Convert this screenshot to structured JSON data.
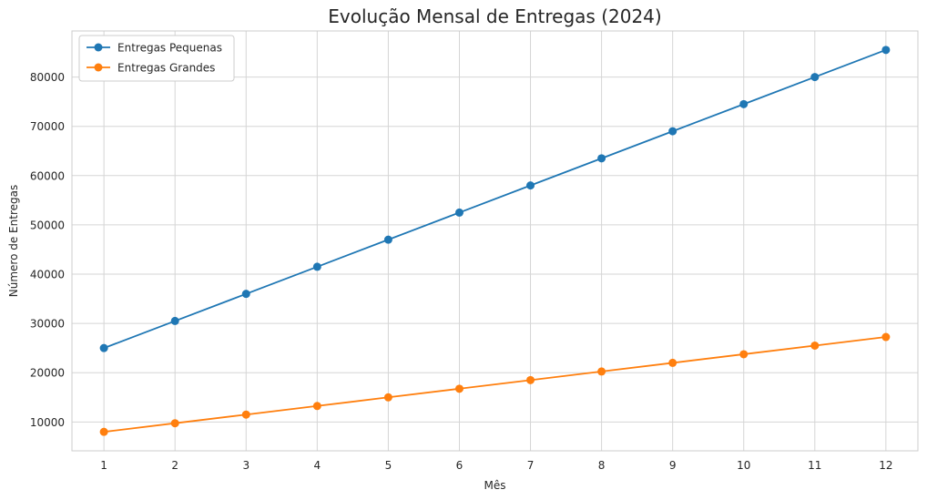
{
  "chart_data": {
    "type": "line",
    "title": "Evolução Mensal de Entregas (2024)",
    "xlabel": "Mês",
    "ylabel": "Número de Entregas",
    "x": [
      1,
      2,
      3,
      4,
      5,
      6,
      7,
      8,
      9,
      10,
      11,
      12
    ],
    "xlim": [
      0.55,
      12.45
    ],
    "ylim": [
      4150,
      89350
    ],
    "yticks": [
      10000,
      20000,
      30000,
      40000,
      50000,
      60000,
      70000,
      80000
    ],
    "grid": true,
    "legend_position": "top-left",
    "series": [
      {
        "name": "Entregas Pequenas",
        "color": "#1f77b4",
        "marker": "circle",
        "values": [
          25000,
          30500,
          36000,
          41500,
          47000,
          52500,
          58000,
          63500,
          69000,
          74500,
          80000,
          85500
        ]
      },
      {
        "name": "Entregas Grandes",
        "color": "#ff7f0e",
        "marker": "circle",
        "values": [
          8000,
          9750,
          11500,
          13250,
          15000,
          16750,
          18500,
          20250,
          22000,
          23750,
          25500,
          27250
        ]
      }
    ]
  }
}
